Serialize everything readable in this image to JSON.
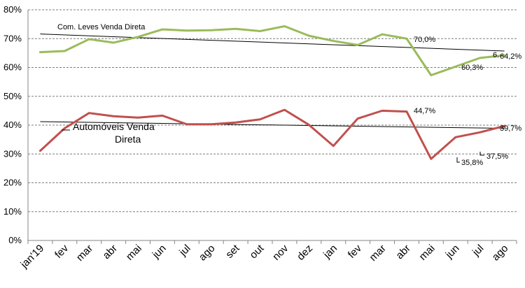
{
  "chart_data": {
    "type": "line",
    "categories": [
      "jan'19",
      "fev",
      "mar",
      "abr",
      "mai",
      "jun",
      "jul",
      "ago",
      "set",
      "out",
      "nov",
      "dez",
      "jan",
      "fev",
      "mar",
      "abr",
      "mai",
      "jun",
      "jul",
      "ago"
    ],
    "ylim": [
      0,
      80
    ],
    "yticks": [
      "0%",
      "10%",
      "20%",
      "30%",
      "40%",
      "50%",
      "60%",
      "70%",
      "80%"
    ],
    "grid": true,
    "trendlines": true,
    "series": [
      {
        "name": "Com. Leves Venda Direta",
        "color": "#9BBB59",
        "values": [
          65.3,
          65.7,
          69.8,
          68.6,
          70.6,
          73.2,
          72.8,
          72.9,
          73.4,
          72.6,
          74.3,
          71.0,
          69.2,
          67.8,
          71.5,
          70.0,
          57.3,
          60.3,
          63.3,
          64.2
        ],
        "trend": [
          71.6,
          65.7
        ],
        "labels": [
          "70,0%",
          "60,3%",
          "6.",
          "64,2%"
        ]
      },
      {
        "name": "Automóveis Venda Direta",
        "name_lines": [
          "Automóveis Venda",
          "Direta"
        ],
        "color": "#C0504D",
        "values": [
          31.1,
          38.9,
          44.2,
          43.1,
          42.6,
          43.3,
          40.3,
          40.3,
          40.9,
          42.0,
          45.3,
          40.1,
          32.8,
          42.3,
          45.0,
          44.7,
          28.3,
          35.8,
          37.5,
          39.7
        ],
        "trend": [
          41.2,
          38.9
        ],
        "labels": [
          "44,7%",
          "35,8%",
          "37,5%",
          "39,7%"
        ]
      }
    ]
  }
}
